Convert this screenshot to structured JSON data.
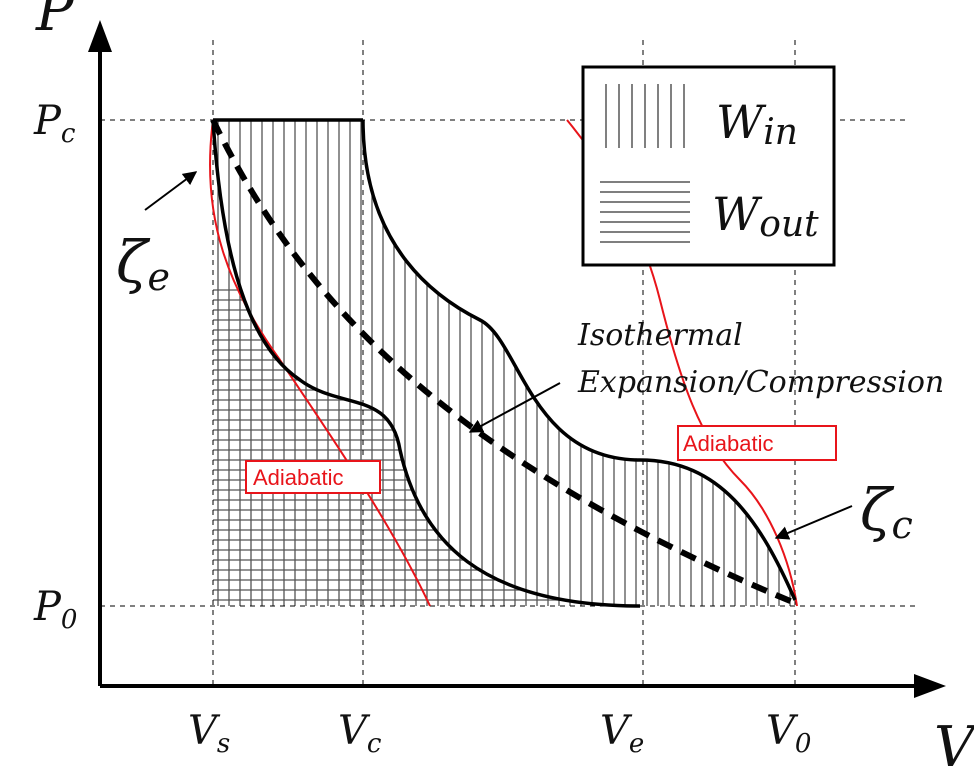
{
  "axes": {
    "y_label": "P",
    "x_label": "V",
    "y_ticks": {
      "pc": "P",
      "pc_sub": "c",
      "p0": "P",
      "p0_sub": "0"
    },
    "x_ticks": [
      {
        "main": "V",
        "sub": "s"
      },
      {
        "main": "V",
        "sub": "c"
      },
      {
        "main": "V",
        "sub": "e"
      },
      {
        "main": "V",
        "sub": "0"
      }
    ]
  },
  "legend": {
    "win_main": "W",
    "win_sub": "in",
    "wout_main": "W",
    "wout_sub": "out"
  },
  "labels": {
    "zeta_e_main": "ζ",
    "zeta_e_sub": "e",
    "zeta_c_main": "ζ",
    "zeta_c_sub": "c",
    "isothermal_line1": "Isothermal",
    "isothermal_line2": "Expansion/Compression",
    "adiabatic_left": "Adiabatic",
    "adiabatic_right": "Adiabatic"
  },
  "colors": {
    "axis": "#000000",
    "curve": "#000000",
    "adiabatic": "#e8141a",
    "hatch": "#555555"
  }
}
